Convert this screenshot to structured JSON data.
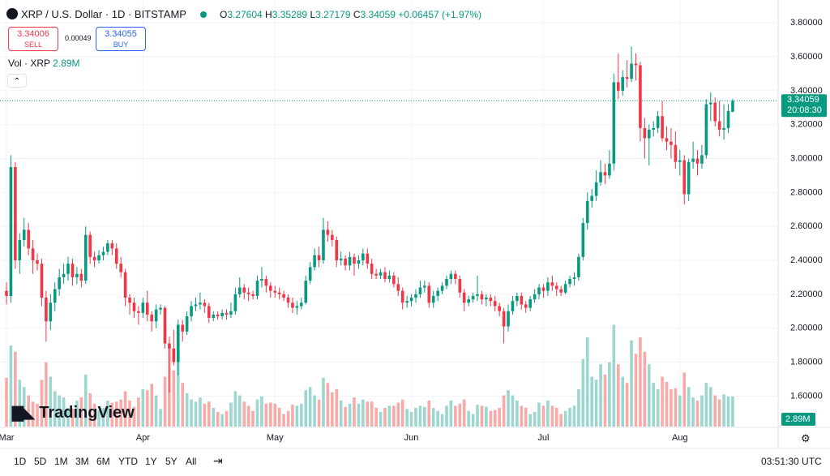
{
  "header": {
    "symbol": "XRP / U.S. Dollar · 1D · BITSTAMP",
    "ohlc_labels": [
      "O",
      "H",
      "L",
      "C"
    ],
    "change": "+0.06457 (+1.97%)"
  },
  "trade": {
    "sell": "3.34006",
    "sell_label": "SELL",
    "spread": "0.00049",
    "buy": "3.34055",
    "buy_label": "BUY"
  },
  "volume_legend": "Vol · XRP",
  "countdown": "20:08:30",
  "logo": "TradingView",
  "toolbar": {
    "ranges": [
      "1D",
      "5D",
      "1M",
      "3M",
      "6M",
      "YTD",
      "1Y",
      "5Y",
      "All"
    ],
    "clock": "03:51:30 UTC"
  },
  "chart_data": {
    "type": "candlestick",
    "up_color": "#089981",
    "down_color": "#f23645",
    "volume_up_color": "#9bd6cf",
    "volume_down_color": "#f7aaa8",
    "grid": true,
    "ylim": [
      1.42,
      3.93
    ],
    "yticks": [
      {
        "value": 1.6,
        "label": "1.60000"
      },
      {
        "value": 1.8,
        "label": "1.80000"
      },
      {
        "value": 2.0,
        "label": "2.00000"
      },
      {
        "value": 2.2,
        "label": "2.20000"
      },
      {
        "value": 2.4,
        "label": "2.40000"
      },
      {
        "value": 2.6,
        "label": "2.60000"
      },
      {
        "value": 2.8,
        "label": "2.80000"
      },
      {
        "value": 3.0,
        "label": "3.00000"
      },
      {
        "value": 3.2,
        "label": "3.20000"
      },
      {
        "value": 3.4,
        "label": "3.40000"
      },
      {
        "value": 3.6,
        "label": "3.60000"
      },
      {
        "value": 3.8,
        "label": "3.80000"
      }
    ],
    "xticks": [
      {
        "value": 0,
        "label": "Mar"
      },
      {
        "value": 31,
        "label": "Apr"
      },
      {
        "value": 61,
        "label": "May"
      },
      {
        "value": 92,
        "label": "Jun"
      },
      {
        "value": 122,
        "label": "Jul"
      },
      {
        "value": 153,
        "label": "Aug"
      }
    ],
    "volume_ylim": [
      0,
      41
    ],
    "volume_last_label": "2.89M",
    "open": [
      2.22,
      2.19,
      2.95,
      2.4,
      2.52,
      2.58,
      2.47,
      2.4,
      2.38,
      2.18,
      2.04,
      2.15,
      2.23,
      2.3,
      2.32,
      2.38,
      2.3,
      2.32,
      2.28,
      2.55,
      2.42,
      2.4,
      2.43,
      2.45,
      2.5,
      2.47,
      2.38,
      2.33,
      2.18,
      2.15,
      2.1,
      2.09,
      2.15,
      2.08,
      2.04,
      2.11,
      2.12,
      1.91,
      1.88,
      1.8,
      2.02,
      1.98,
      2.07,
      2.13,
      2.14,
      2.15,
      2.13,
      2.06,
      2.08,
      2.07,
      2.09,
      2.08,
      2.1,
      2.2,
      2.24,
      2.21,
      2.2,
      2.19,
      2.28,
      2.29,
      2.25,
      2.22,
      2.21,
      2.2,
      2.18,
      2.15,
      2.12,
      2.13,
      2.15,
      2.28,
      2.36,
      2.43,
      2.4,
      2.58,
      2.55,
      2.52,
      2.4,
      2.41,
      2.37,
      2.42,
      2.38,
      2.4,
      2.44,
      2.38,
      2.32,
      2.31,
      2.33,
      2.29,
      2.31,
      2.26,
      2.22,
      2.15,
      2.16,
      2.18,
      2.2,
      2.24,
      2.25,
      2.15,
      2.19,
      2.22,
      2.25,
      2.29,
      2.32,
      2.29,
      2.21,
      2.15,
      2.17,
      2.19,
      2.2,
      2.17,
      2.18,
      2.16,
      2.13,
      2.1,
      2.01,
      2.1,
      2.16,
      2.19,
      2.14,
      2.12,
      2.17,
      2.2,
      2.24,
      2.22,
      2.27,
      2.25,
      2.23,
      2.21,
      2.26,
      2.29,
      2.3,
      2.42,
      2.62,
      2.75,
      2.78,
      2.86,
      2.92,
      2.9,
      2.97,
      3.45,
      3.4,
      3.48,
      3.47,
      3.56,
      3.55,
      3.18,
      3.12,
      3.17,
      3.18,
      3.25,
      3.12,
      3.1,
      3.08,
      2.98,
      2.99,
      2.79,
      2.98,
      3.0,
      2.97,
      3.02,
      3.32,
      3.33,
      3.22,
      3.17,
      3.18,
      3.27604
    ],
    "high": [
      2.27,
      3.02,
      2.98,
      2.56,
      2.65,
      2.62,
      2.52,
      2.44,
      2.41,
      2.22,
      2.2,
      2.27,
      2.35,
      2.38,
      2.42,
      2.41,
      2.36,
      2.35,
      2.6,
      2.57,
      2.45,
      2.46,
      2.48,
      2.52,
      2.52,
      2.5,
      2.42,
      2.35,
      2.2,
      2.18,
      2.13,
      2.18,
      2.22,
      2.1,
      2.14,
      2.14,
      2.13,
      1.95,
      1.99,
      2.05,
      2.05,
      2.1,
      2.16,
      2.18,
      2.21,
      2.17,
      2.15,
      2.1,
      2.1,
      2.11,
      2.11,
      2.15,
      2.24,
      2.3,
      2.26,
      2.24,
      2.22,
      2.31,
      2.36,
      2.31,
      2.27,
      2.25,
      2.24,
      2.22,
      2.2,
      2.18,
      2.16,
      2.18,
      2.31,
      2.39,
      2.47,
      2.48,
      2.65,
      2.63,
      2.58,
      2.54,
      2.45,
      2.43,
      2.45,
      2.44,
      2.43,
      2.47,
      2.47,
      2.41,
      2.35,
      2.35,
      2.36,
      2.34,
      2.33,
      2.3,
      2.24,
      2.19,
      2.2,
      2.23,
      2.28,
      2.28,
      2.27,
      2.22,
      2.24,
      2.27,
      2.31,
      2.34,
      2.34,
      2.31,
      2.23,
      2.19,
      2.21,
      2.31,
      2.22,
      2.2,
      2.2,
      2.19,
      2.15,
      2.12,
      2.14,
      2.19,
      2.21,
      2.21,
      2.16,
      2.19,
      2.23,
      2.26,
      2.26,
      2.3,
      2.31,
      2.27,
      2.25,
      2.28,
      2.31,
      2.33,
      2.44,
      2.65,
      2.8,
      2.82,
      2.93,
      2.99,
      2.97,
      3.05,
      3.5,
      3.62,
      3.52,
      3.58,
      3.66,
      3.62,
      3.57,
      3.24,
      3.2,
      3.22,
      3.28,
      3.34,
      3.19,
      3.18,
      3.16,
      3.05,
      3.02,
      3.0,
      3.1,
      3.05,
      3.08,
      3.35,
      3.39,
      3.36,
      3.34,
      3.32,
      3.32,
      3.35289
    ],
    "low": [
      2.14,
      2.15,
      2.35,
      2.32,
      2.48,
      2.43,
      2.32,
      2.34,
      2.13,
      1.92,
      1.99,
      2.1,
      2.19,
      2.26,
      2.28,
      2.25,
      2.26,
      2.24,
      2.26,
      2.38,
      2.36,
      2.38,
      2.4,
      2.43,
      2.43,
      2.35,
      2.3,
      2.13,
      2.08,
      2.06,
      2.02,
      2.06,
      2.04,
      1.98,
      2.0,
      2.08,
      1.88,
      1.62,
      1.78,
      1.72,
      1.92,
      1.96,
      2.04,
      2.1,
      2.11,
      2.09,
      2.03,
      2.04,
      2.05,
      2.05,
      2.05,
      2.06,
      2.08,
      2.18,
      2.17,
      2.16,
      2.17,
      2.17,
      2.24,
      2.21,
      2.18,
      2.18,
      2.17,
      2.16,
      2.12,
      2.09,
      2.08,
      2.11,
      2.14,
      2.26,
      2.34,
      2.36,
      2.38,
      2.51,
      2.48,
      2.36,
      2.37,
      2.34,
      2.34,
      2.31,
      2.35,
      2.37,
      2.35,
      2.29,
      2.29,
      2.29,
      2.27,
      2.27,
      2.24,
      2.19,
      2.11,
      2.12,
      2.13,
      2.15,
      2.18,
      2.21,
      2.12,
      2.12,
      2.16,
      2.2,
      2.23,
      2.26,
      2.26,
      2.18,
      2.1,
      2.13,
      2.15,
      2.16,
      2.14,
      2.13,
      2.13,
      2.1,
      2.07,
      1.91,
      1.98,
      2.08,
      2.13,
      2.11,
      2.09,
      2.1,
      2.15,
      2.17,
      2.18,
      2.19,
      2.22,
      2.19,
      2.19,
      2.2,
      2.24,
      2.25,
      2.28,
      2.4,
      2.58,
      2.71,
      2.75,
      2.84,
      2.85,
      2.88,
      2.93,
      3.35,
      3.37,
      3.42,
      3.45,
      3.46,
      3.1,
      3.0,
      2.96,
      3.13,
      3.15,
      3.1,
      3.05,
      3.0,
      2.94,
      2.9,
      2.73,
      2.75,
      2.94,
      2.9,
      2.94,
      3.0,
      3.22,
      3.19,
      3.13,
      3.11,
      3.15,
      3.27179
    ],
    "close": [
      2.19,
      2.95,
      2.4,
      2.52,
      2.58,
      2.47,
      2.4,
      2.38,
      2.18,
      2.04,
      2.15,
      2.23,
      2.3,
      2.32,
      2.38,
      2.3,
      2.32,
      2.28,
      2.55,
      2.42,
      2.4,
      2.43,
      2.45,
      2.5,
      2.47,
      2.38,
      2.33,
      2.18,
      2.15,
      2.1,
      2.09,
      2.15,
      2.08,
      2.04,
      2.11,
      2.12,
      1.91,
      1.88,
      1.8,
      2.02,
      1.98,
      2.07,
      2.13,
      2.14,
      2.15,
      2.13,
      2.06,
      2.08,
      2.07,
      2.09,
      2.08,
      2.1,
      2.2,
      2.24,
      2.21,
      2.2,
      2.19,
      2.28,
      2.29,
      2.25,
      2.22,
      2.21,
      2.2,
      2.18,
      2.15,
      2.12,
      2.13,
      2.15,
      2.28,
      2.36,
      2.43,
      2.4,
      2.58,
      2.55,
      2.52,
      2.4,
      2.41,
      2.37,
      2.42,
      2.38,
      2.4,
      2.44,
      2.38,
      2.32,
      2.31,
      2.33,
      2.29,
      2.31,
      2.26,
      2.22,
      2.15,
      2.16,
      2.18,
      2.2,
      2.24,
      2.25,
      2.15,
      2.19,
      2.22,
      2.25,
      2.29,
      2.32,
      2.29,
      2.21,
      2.15,
      2.17,
      2.19,
      2.2,
      2.17,
      2.18,
      2.16,
      2.13,
      2.1,
      2.01,
      2.1,
      2.16,
      2.19,
      2.14,
      2.12,
      2.17,
      2.2,
      2.24,
      2.22,
      2.27,
      2.25,
      2.23,
      2.21,
      2.26,
      2.29,
      2.3,
      2.42,
      2.62,
      2.75,
      2.78,
      2.86,
      2.92,
      2.9,
      2.97,
      3.45,
      3.4,
      3.48,
      3.47,
      3.56,
      3.55,
      3.18,
      3.12,
      3.17,
      3.18,
      3.25,
      3.12,
      3.1,
      3.08,
      2.98,
      2.99,
      2.79,
      2.98,
      3.0,
      2.97,
      3.02,
      3.32,
      3.33,
      3.22,
      3.17,
      3.18,
      3.28,
      3.34059
    ],
    "volume": [
      4.7,
      7.8,
      7.2,
      4.5,
      3.8,
      3.0,
      2.4,
      2.2,
      4.5,
      6.2,
      4.8,
      3.4,
      3.0,
      2.8,
      1.8,
      1.7,
      2.5,
      2.8,
      5.0,
      3.2,
      2.2,
      1.6,
      1.8,
      2.5,
      2.3,
      2.4,
      2.6,
      3.4,
      2.5,
      1.9,
      2.8,
      3.6,
      3.5,
      4.1,
      3.0,
      1.7,
      4.8,
      8.0,
      5.4,
      7.0,
      4.2,
      3.2,
      2.6,
      2.4,
      2.8,
      2.2,
      2.4,
      1.8,
      1.4,
      1.2,
      1.5,
      2.3,
      3.4,
      3.0,
      2.4,
      2.0,
      1.5,
      2.6,
      2.9,
      2.2,
      2.3,
      2.2,
      1.8,
      1.2,
      1.5,
      2.1,
      2.0,
      2.2,
      3.5,
      3.8,
      3.0,
      2.6,
      4.7,
      4.2,
      3.3,
      3.6,
      2.5,
      1.9,
      2.2,
      2.8,
      2.2,
      2.6,
      2.4,
      2.4,
      1.8,
      1.4,
      1.8,
      2.0,
      2.0,
      2.3,
      2.6,
      1.7,
      1.4,
      1.8,
      2.0,
      1.9,
      2.5,
      1.8,
      1.5,
      1.2,
      2.0,
      2.5,
      2.0,
      2.2,
      2.6,
      1.5,
      1.2,
      2.1,
      2.0,
      1.9,
      1.5,
      1.6,
      1.8,
      3.0,
      3.5,
      3.0,
      2.5,
      2.0,
      1.8,
      1.2,
      1.4,
      2.3,
      2.0,
      2.5,
      2.0,
      1.8,
      1.2,
      1.5,
      1.8,
      2.0,
      3.6,
      6.5,
      8.6,
      4.8,
      4.5,
      6.0,
      5.0,
      6.2,
      9.8,
      6.0,
      4.8,
      4.2,
      8.3,
      7.0,
      8.6,
      7.2,
      6.0,
      4.2,
      3.6,
      4.8,
      4.3,
      3.6,
      3.7,
      3.0,
      5.2,
      3.8,
      2.8,
      2.5,
      3.0,
      4.2,
      3.8,
      3.0,
      2.6,
      3.1,
      2.9,
      2.89
    ]
  }
}
